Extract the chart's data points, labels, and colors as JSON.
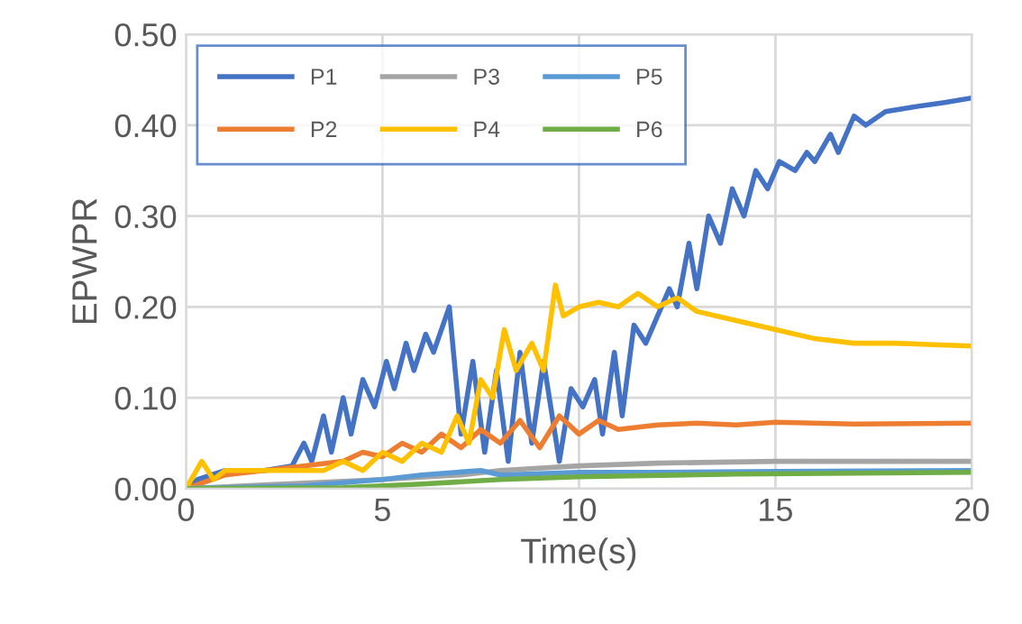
{
  "chart_data": {
    "type": "line",
    "xlabel": "Time(s)",
    "ylabel": "EPWPR",
    "xlim": [
      0,
      20
    ],
    "xticks": [
      0,
      5,
      10,
      15,
      20
    ],
    "ylim": [
      0,
      0.5
    ],
    "yticks": [
      {
        "value": 0,
        "label": "0.00"
      },
      {
        "value": 0.1,
        "label": "0.10"
      },
      {
        "value": 0.2,
        "label": "0.20"
      },
      {
        "value": 0.3,
        "label": "0.30"
      },
      {
        "value": 0.4,
        "label": "0.40"
      },
      {
        "value": 0.5,
        "label": "0.50"
      }
    ],
    "grid": true,
    "legend": "top left",
    "marker": "none",
    "line_style": "solid",
    "series": [
      {
        "name": "P1",
        "color": "#4472c4",
        "x": [
          0,
          0.3,
          1,
          2,
          2.7,
          3,
          3.2,
          3.5,
          3.7,
          4,
          4.2,
          4.5,
          4.8,
          5.1,
          5.3,
          5.6,
          5.8,
          6.1,
          6.3,
          6.7,
          7.0,
          7.3,
          7.6,
          7.9,
          8.2,
          8.5,
          8.8,
          9.1,
          9.5,
          9.8,
          10.1,
          10.4,
          10.6,
          10.9,
          11.1,
          11.4,
          11.7,
          12,
          12.3,
          12.5,
          12.8,
          13,
          13.3,
          13.6,
          13.9,
          14.2,
          14.5,
          14.8,
          15.1,
          15.5,
          15.8,
          16,
          16.4,
          16.6,
          17,
          17.3,
          17.8,
          18.5,
          19.3,
          20
        ],
        "values": [
          0,
          0.01,
          0.02,
          0.02,
          0.025,
          0.05,
          0.03,
          0.08,
          0.04,
          0.1,
          0.06,
          0.12,
          0.09,
          0.14,
          0.11,
          0.16,
          0.13,
          0.17,
          0.15,
          0.2,
          0.06,
          0.14,
          0.04,
          0.13,
          0.03,
          0.15,
          0.05,
          0.14,
          0.03,
          0.11,
          0.09,
          0.12,
          0.06,
          0.15,
          0.08,
          0.18,
          0.16,
          0.19,
          0.22,
          0.2,
          0.27,
          0.22,
          0.3,
          0.27,
          0.33,
          0.3,
          0.35,
          0.33,
          0.36,
          0.35,
          0.37,
          0.36,
          0.39,
          0.37,
          0.41,
          0.4,
          0.415,
          0.42,
          0.425,
          0.43
        ]
      },
      {
        "name": "P2",
        "color": "#ed7d31",
        "x": [
          0,
          1,
          2,
          3,
          4,
          4.5,
          5,
          5.5,
          6,
          6.5,
          7,
          7.5,
          8,
          8.5,
          9,
          9.5,
          10,
          10.5,
          11,
          12,
          13,
          14,
          15,
          17,
          20
        ],
        "values": [
          0,
          0.015,
          0.02,
          0.025,
          0.03,
          0.04,
          0.035,
          0.05,
          0.04,
          0.06,
          0.045,
          0.065,
          0.05,
          0.075,
          0.045,
          0.08,
          0.06,
          0.075,
          0.065,
          0.07,
          0.072,
          0.07,
          0.073,
          0.071,
          0.072
        ]
      },
      {
        "name": "P3",
        "color": "#a5a5a5",
        "x": [
          0,
          5,
          7,
          8,
          10,
          12,
          15,
          20
        ],
        "values": [
          0,
          0.01,
          0.015,
          0.02,
          0.025,
          0.028,
          0.03,
          0.03
        ]
      },
      {
        "name": "P4",
        "color": "#ffc000",
        "x": [
          0,
          0.4,
          0.7,
          1,
          2,
          3,
          3.5,
          4,
          4.5,
          5,
          5.5,
          6,
          6.5,
          6.9,
          7.2,
          7.5,
          7.8,
          8.1,
          8.4,
          8.8,
          9.1,
          9.4,
          9.6,
          10,
          10.5,
          11,
          11.5,
          12,
          12.5,
          13,
          14,
          15,
          16,
          17,
          18,
          20
        ],
        "values": [
          0,
          0.03,
          0.01,
          0.02,
          0.02,
          0.02,
          0.02,
          0.03,
          0.02,
          0.04,
          0.03,
          0.05,
          0.04,
          0.08,
          0.05,
          0.12,
          0.1,
          0.175,
          0.13,
          0.16,
          0.13,
          0.224,
          0.19,
          0.2,
          0.205,
          0.2,
          0.215,
          0.2,
          0.21,
          0.195,
          0.185,
          0.175,
          0.165,
          0.16,
          0.16,
          0.157
        ]
      },
      {
        "name": "P5",
        "color": "#5b9bd5",
        "x": [
          0,
          3,
          5,
          6,
          7.5,
          8,
          10,
          12,
          15,
          20
        ],
        "values": [
          0,
          0.003,
          0.01,
          0.015,
          0.02,
          0.015,
          0.018,
          0.018,
          0.019,
          0.02
        ]
      },
      {
        "name": "P6",
        "color": "#70ad47",
        "x": [
          0,
          4,
          6,
          8,
          10,
          14,
          20
        ],
        "values": [
          0,
          0.001,
          0.005,
          0.01,
          0.013,
          0.016,
          0.018
        ]
      }
    ]
  }
}
